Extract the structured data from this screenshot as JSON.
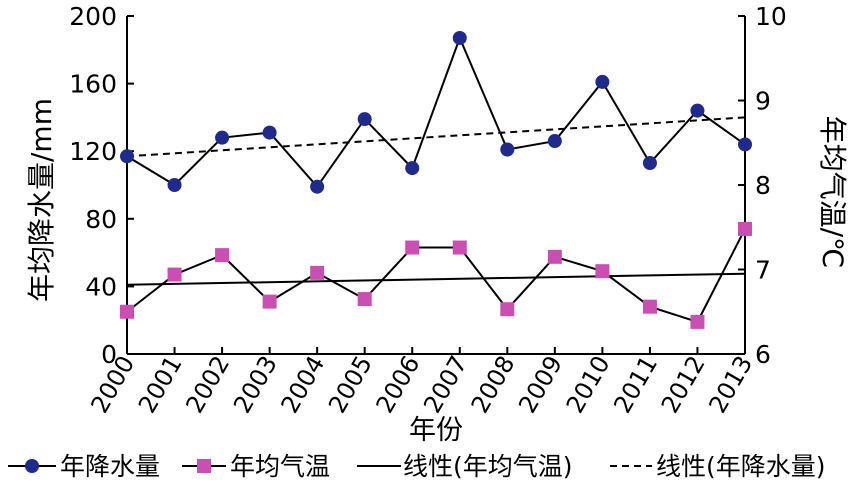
{
  "chart_data": {
    "type": "line",
    "title": "",
    "xlabel": "年份",
    "ylabel_left": "年均降水量/mm",
    "ylabel_right": "年均气温/℃",
    "categories": [
      "2000",
      "2001",
      "2002",
      "2003",
      "2004",
      "2005",
      "2006",
      "2007",
      "2008",
      "2009",
      "2010",
      "2011",
      "2012",
      "2013"
    ],
    "left_axis": {
      "min": 0,
      "max": 200,
      "ticks": [
        0,
        40,
        80,
        120,
        160,
        200
      ],
      "tick_labels": [
        "0",
        "40",
        "80",
        "120",
        "160",
        "200"
      ]
    },
    "right_axis": {
      "min": 6,
      "max": 10,
      "ticks": [
        6,
        7,
        8,
        9,
        10
      ],
      "tick_labels": [
        "6",
        "7",
        "8",
        "9",
        "10"
      ]
    },
    "series": [
      {
        "name": "年降水量",
        "axis": "left",
        "marker": "circle",
        "color": "#1f2a8a",
        "values": [
          117,
          100,
          128,
          131,
          99,
          139,
          110,
          187,
          121,
          126,
          161,
          113,
          144,
          124
        ]
      },
      {
        "name": "年均气温",
        "axis": "right",
        "marker": "square",
        "color": "#c94fb2",
        "values": [
          6.5,
          6.94,
          7.17,
          6.62,
          6.96,
          6.65,
          7.26,
          7.26,
          6.53,
          7.15,
          6.98,
          6.56,
          6.38,
          7.48
        ]
      }
    ],
    "trendlines": [
      {
        "name": "线性(年均气温)",
        "axis": "right",
        "style": "solid",
        "color": "#000000",
        "start": 6.82,
        "end": 6.95
      },
      {
        "name": "线性(年降水量)",
        "axis": "left",
        "style": "dashed",
        "color": "#000000",
        "start": 117,
        "end": 140
      }
    ],
    "legend": {
      "placement": "bottom",
      "items": [
        "年降水量",
        "年均气温",
        "线性(年均气温)",
        "线性(年降水量)"
      ]
    },
    "grid": false
  }
}
